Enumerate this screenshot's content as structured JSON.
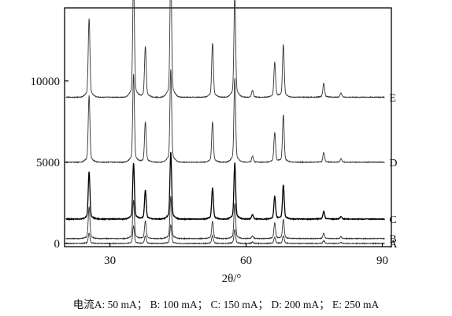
{
  "chart_data": {
    "type": "line",
    "xlabel": "2θ/°",
    "ylabel": "",
    "xlim": [
      20,
      92
    ],
    "ylim": [
      -200,
      14500
    ],
    "x_ticks": [
      30,
      60,
      90
    ],
    "y_ticks": [
      0,
      5000,
      10000
    ],
    "grid": false,
    "legend": "series letters at the right end of each trace",
    "caption": "电流A: 50 mA； B: 100 mA； C: 150 mA； D: 200 mA； E: 250 mA",
    "series": [
      {
        "name": "A",
        "offset": 0,
        "peaks": [
          [
            25.4,
            600
          ],
          [
            35.2,
            1000
          ],
          [
            37.8,
            450
          ],
          [
            43.4,
            1050
          ],
          [
            52.6,
            450
          ],
          [
            57.5,
            800
          ],
          [
            61.4,
            80
          ],
          [
            66.3,
            350
          ],
          [
            68.2,
            450
          ],
          [
            77.1,
            150
          ],
          [
            80.9,
            60
          ]
        ]
      },
      {
        "name": "B",
        "offset": 300,
        "peaks": [
          [
            25.4,
            1800
          ],
          [
            35.2,
            2200
          ],
          [
            37.8,
            1000
          ],
          [
            43.4,
            2400
          ],
          [
            52.6,
            1000
          ],
          [
            57.5,
            2000
          ],
          [
            61.4,
            150
          ],
          [
            66.3,
            900
          ],
          [
            68.2,
            1100
          ],
          [
            77.1,
            300
          ],
          [
            80.9,
            100
          ]
        ]
      },
      {
        "name": "C",
        "offset": 1500,
        "peaks": [
          [
            25.4,
            2700
          ],
          [
            35.2,
            3200
          ],
          [
            37.8,
            1650
          ],
          [
            43.4,
            3800
          ],
          [
            52.6,
            1800
          ],
          [
            57.5,
            3200
          ],
          [
            61.4,
            250
          ],
          [
            66.3,
            1300
          ],
          [
            68.2,
            1950
          ],
          [
            77.1,
            450
          ],
          [
            80.9,
            150
          ]
        ]
      },
      {
        "name": "D",
        "offset": 5000,
        "peaks": [
          [
            25.4,
            3800
          ],
          [
            35.2,
            5000
          ],
          [
            37.8,
            2300
          ],
          [
            43.4,
            5300
          ],
          [
            52.6,
            2300
          ],
          [
            57.5,
            4800
          ],
          [
            61.4,
            350
          ],
          [
            66.3,
            1700
          ],
          [
            68.2,
            2700
          ],
          [
            77.1,
            550
          ],
          [
            80.9,
            200
          ]
        ]
      },
      {
        "name": "E",
        "offset": 9000,
        "peaks": [
          [
            25.4,
            4500
          ],
          [
            35.2,
            6800
          ],
          [
            37.8,
            2900
          ],
          [
            43.4,
            7400
          ],
          [
            52.6,
            3100
          ],
          [
            57.5,
            5800
          ],
          [
            61.4,
            400
          ],
          [
            66.3,
            2000
          ],
          [
            68.2,
            3000
          ],
          [
            77.1,
            800
          ],
          [
            80.9,
            250
          ]
        ]
      }
    ]
  }
}
